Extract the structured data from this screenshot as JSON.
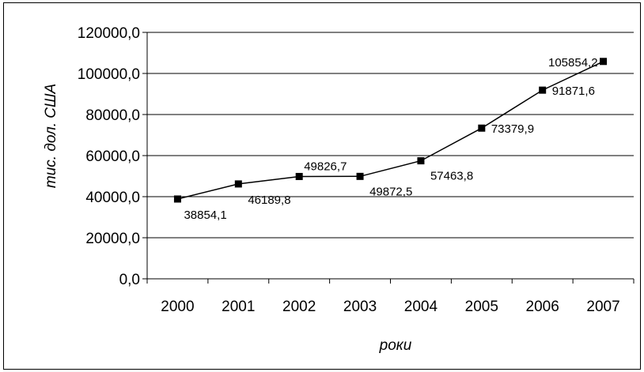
{
  "chart_data": {
    "type": "line",
    "title": "",
    "xlabel": "роки",
    "ylabel": "тис. дол. США",
    "categories": [
      "2000",
      "2001",
      "2002",
      "2003",
      "2004",
      "2005",
      "2006",
      "2007"
    ],
    "values": [
      38854.1,
      46189.8,
      49826.7,
      49872.5,
      57463.8,
      73379.9,
      91871.6,
      105854.2
    ],
    "data_labels": [
      "38854,1",
      "46189,8",
      "49826,7",
      "49872,5",
      "57463,8",
      "73379,9",
      "91871,6",
      "105854,2"
    ],
    "ylim": [
      0,
      120000
    ],
    "y_ticks": [
      {
        "value": 0,
        "label": "0,0"
      },
      {
        "value": 20000,
        "label": "20000,0"
      },
      {
        "value": 40000,
        "label": "40000,0"
      },
      {
        "value": 60000,
        "label": "60000,0"
      },
      {
        "value": 80000,
        "label": "80000,0"
      },
      {
        "value": 100000,
        "label": "100000,0"
      },
      {
        "value": 120000,
        "label": "120000,0"
      }
    ],
    "grid": true,
    "legend": "none",
    "marker": "square",
    "line_color": "#000000",
    "grid_color": "#000000"
  }
}
